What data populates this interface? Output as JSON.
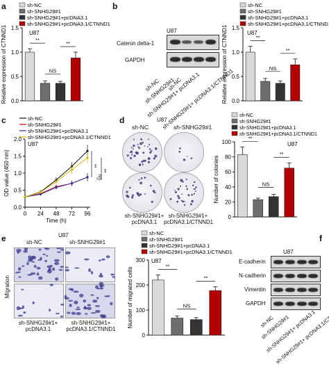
{
  "panels": {
    "a": {
      "label": "a",
      "cell_line": "U87",
      "ylabel": "Relative expression of CTNND1",
      "legend": [
        "sh-NC",
        "sh-SNHG29#1",
        "sh-SNHG29#1+pcDNA3.1",
        "sh-SNHG29#1+pcDNA3.1/CTNND1"
      ],
      "sig": [
        "**",
        "NS",
        "**"
      ]
    },
    "b": {
      "label": "b",
      "cell_line": "U87",
      "blot_rows": [
        "Catenin delta-1",
        "GAPDH"
      ],
      "lanes": [
        "sh-NC",
        "sh-SNHG29#1",
        "sh-SNHG29#1+ pcDNA3.1",
        "sh-SNHG29#1+ pcDNA3.1/CTNND1"
      ],
      "ylabel": "Relative expression of CTNND1",
      "legend": [
        "sh-NC",
        "sh-SNHG29#1",
        "sh-SNHG29#1+pcDNA3.1",
        "sh-SNHG29#1+pcDNA3.1/CTNND1"
      ],
      "sig": [
        "**",
        "NS",
        "**"
      ]
    },
    "c": {
      "label": "c",
      "cell_line": "U87",
      "legend": [
        "sh-NC",
        "sh-SNHG29#1",
        "sh-SNHG29#1+pcDNA3.1",
        "sh-SNHG29#1+pcDNA3.1/CTNND1"
      ],
      "ylabel": "OD value (450 nm)",
      "xlabel": "Time (h)",
      "sig": [
        "**",
        "NS",
        "**"
      ]
    },
    "d": {
      "label": "d",
      "cell_line": "U87",
      "images": [
        "sh-NC",
        "sh-SNHG29#1",
        "sh-SNHG29#1+ pcDNA3.1",
        "sh-SNHG29#1+ pcDNA3.1/CTNND1"
      ],
      "ylabel": "Number of colonies",
      "legend": [
        "sh-NC",
        "sh-SNHG29#1",
        "sh-SNHG29#1+pcDNA3.1",
        "sh-SNHG29#1+pcDNA3.1/CTNND1"
      ],
      "sig": [
        "**",
        "NS",
        "**"
      ]
    },
    "e": {
      "label": "e",
      "cell_line": "U87",
      "images": [
        "sh-NC",
        "sh-SNHG29#1",
        "sh-SNHG29#1+ pcDNA3.1",
        "sh-SNHG29#1+ pcDNA3.1/CTNND1"
      ],
      "row_label": "Migration",
      "ylabel": "Number of migrated cells",
      "legend": [
        "sh-NC",
        "sh-SNHG29#1",
        "sh-SNHG29#1+pcDNA3.1",
        "sh-SNHG29#1+pcDNA3.1/CTNND1"
      ],
      "sig": [
        "**",
        "NS",
        "**"
      ]
    },
    "f": {
      "label": "f",
      "cell_line": "U87",
      "blot_rows": [
        "E-cadherin",
        "N-cadherin",
        "Vimentin",
        "GAPDH"
      ],
      "lanes": [
        "sh-NC",
        "sh-SNHG29#1",
        "sh-SNHG29#1+ pcDNA3.1",
        "sh-SNHG29#1+ pcDNA3.1/CTNND1"
      ]
    }
  },
  "colors": {
    "g1": "#d9d9d9",
    "g2": "#6e6e6e",
    "g3": "#333333",
    "g4": "#b30000",
    "l1": "#111111",
    "l2": "#d40000",
    "l3": "#2e2ea8",
    "l4": "#d6b800"
  },
  "chart_data": [
    {
      "id": "a",
      "type": "bar",
      "categories": [
        "sh-NC",
        "sh-SNHG29#1",
        "sh-SNHG29#1+pcDNA3.1",
        "sh-SNHG29#1+pcDNA3.1/CTNND1"
      ],
      "values": [
        1.0,
        0.36,
        0.36,
        0.88
      ],
      "errors": [
        0.07,
        0.05,
        0.04,
        0.12
      ],
      "ylabel": "Relative expression of CTNND1",
      "ylim": [
        0,
        1.5
      ],
      "yticks": [
        "0.0",
        "0.5",
        "1.0",
        "1.5"
      ]
    },
    {
      "id": "b",
      "type": "bar",
      "categories": [
        "sh-NC",
        "sh-SNHG29#1",
        "sh-SNHG29#1+pcDNA3.1",
        "sh-SNHG29#1+pcDNA3.1/CTNND1"
      ],
      "values": [
        1.0,
        0.4,
        0.36,
        0.74
      ],
      "errors": [
        0.12,
        0.06,
        0.05,
        0.12
      ],
      "ylabel": "Relative expression of CTNND1",
      "ylim": [
        0,
        1.5
      ],
      "yticks": [
        "0.0",
        "0.5",
        "1.0",
        "1.5"
      ]
    },
    {
      "id": "c",
      "type": "line",
      "x": [
        0,
        24,
        48,
        72,
        96
      ],
      "xticks": [
        "0",
        "24",
        "48",
        "72",
        "96"
      ],
      "series": [
        {
          "name": "sh-NC",
          "values": [
            0.3,
            0.45,
            0.8,
            1.2,
            1.65
          ],
          "errors": [
            0.03,
            0.05,
            0.08,
            0.12,
            0.18
          ]
        },
        {
          "name": "sh-SNHG29#1",
          "values": [
            0.3,
            0.4,
            0.6,
            0.7,
            0.88
          ],
          "errors": [
            0.03,
            0.04,
            0.06,
            0.08,
            0.12
          ]
        },
        {
          "name": "sh-SNHG29#1+pcDNA3.1",
          "values": [
            0.3,
            0.38,
            0.58,
            0.7,
            0.88
          ],
          "errors": [
            0.03,
            0.04,
            0.06,
            0.08,
            0.1
          ]
        },
        {
          "name": "sh-SNHG29#1+pcDNA3.1/CTNND1",
          "values": [
            0.3,
            0.44,
            0.75,
            1.1,
            1.45
          ],
          "errors": [
            0.03,
            0.05,
            0.08,
            0.12,
            0.16
          ]
        }
      ],
      "ylabel": "OD value (450 nm)",
      "xlabel": "Time (h)",
      "ylim": [
        0,
        2.0
      ],
      "yticks": [
        "0.0",
        "0.5",
        "1.0",
        "1.5",
        "2.0"
      ]
    },
    {
      "id": "d",
      "type": "bar",
      "categories": [
        "sh-NC",
        "sh-SNHG29#1",
        "sh-SNHG29#1+pcDNA3.1",
        "sh-SNHG29#1+pcDNA3.1/CTNND1"
      ],
      "values": [
        83,
        23,
        27,
        65
      ],
      "errors": [
        10,
        2,
        3,
        7
      ],
      "ylabel": "Number of colonies",
      "ylim": [
        0,
        100
      ],
      "yticks": [
        "0",
        "20",
        "40",
        "60",
        "80",
        "100"
      ]
    },
    {
      "id": "e",
      "type": "bar",
      "categories": [
        "sh-NC",
        "sh-SNHG29#1",
        "sh-SNHG29#1+pcDNA3.1",
        "sh-SNHG29#1+pcDNA3.1/CTNND1"
      ],
      "values": [
        220,
        68,
        62,
        178
      ],
      "errors": [
        20,
        8,
        8,
        15
      ],
      "ylabel": "Number of migrated cells",
      "ylim": [
        0,
        300
      ],
      "yticks": [
        "0",
        "100",
        "200",
        "300"
      ]
    }
  ]
}
